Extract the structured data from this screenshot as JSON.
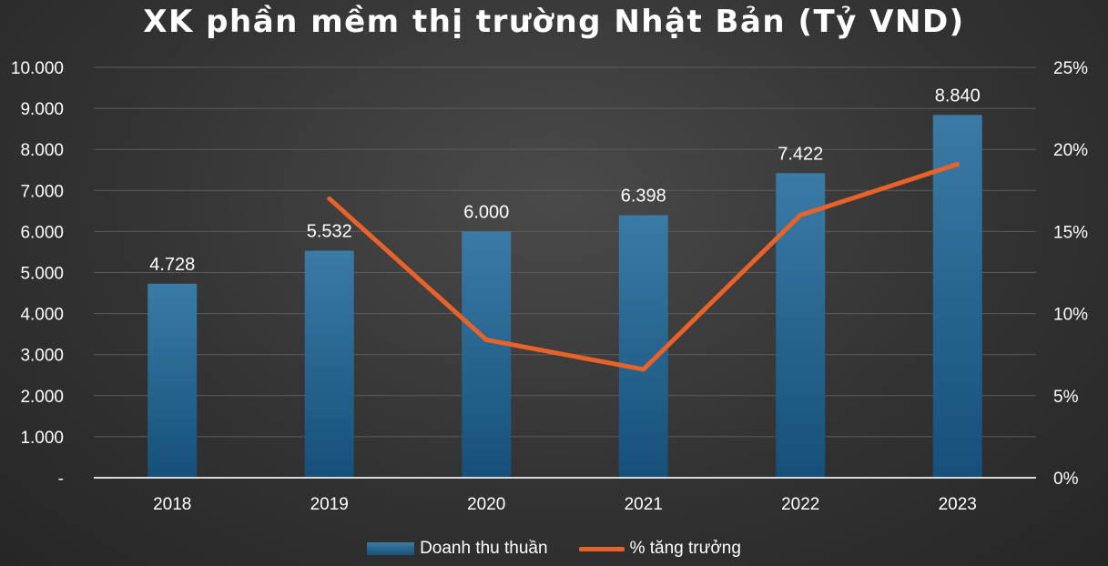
{
  "chart_data": {
    "type": "bar",
    "title": "XK phần mềm thị trường Nhật Bản (Tỷ VND)",
    "categories": [
      "2018",
      "2019",
      "2020",
      "2021",
      "2022",
      "2023"
    ],
    "series": [
      {
        "name": "Doanh thu thuần",
        "type": "bar",
        "axis": "left",
        "values": [
          4728,
          5532,
          6000,
          6398,
          7422,
          8840
        ],
        "labels": [
          "4.728",
          "5.532",
          "6.000",
          "6.398",
          "7.422",
          "8.840"
        ],
        "color": "#21618c"
      },
      {
        "name": "% tăng trưởng",
        "type": "line",
        "axis": "right",
        "values": [
          null,
          17.0,
          8.4,
          6.6,
          16.0,
          19.1
        ],
        "color": "#e8622a"
      }
    ],
    "y_left": {
      "ylim": [
        0,
        10000
      ],
      "ticks": [
        0,
        1000,
        2000,
        3000,
        4000,
        5000,
        6000,
        7000,
        8000,
        9000,
        10000
      ],
      "tick_labels": [
        "-",
        "1.000",
        "2.000",
        "3.000",
        "4.000",
        "5.000",
        "6.000",
        "7.000",
        "8.000",
        "9.000",
        "10.000"
      ]
    },
    "y_right": {
      "ylim": [
        0,
        25
      ],
      "ticks": [
        0,
        5,
        10,
        15,
        20,
        25
      ],
      "tick_labels": [
        "0%",
        "5%",
        "10%",
        "15%",
        "20%",
        "25%"
      ]
    },
    "grid": true,
    "legend": "bottom"
  }
}
